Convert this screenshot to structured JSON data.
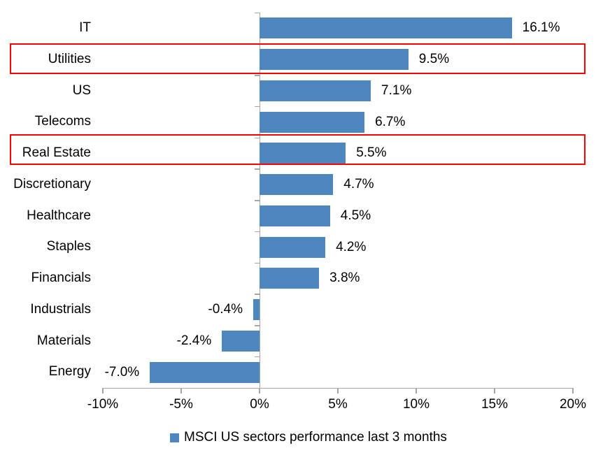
{
  "chart_data": {
    "type": "bar",
    "orientation": "horizontal",
    "title": "",
    "categories": [
      "IT",
      "Utilities",
      "US",
      "Telecoms",
      "Real Estate",
      "Discretionary",
      "Healthcare",
      "Staples",
      "Financials",
      "Industrials",
      "Materials",
      "Energy"
    ],
    "values": [
      16.1,
      9.5,
      7.1,
      6.7,
      5.5,
      4.7,
      4.5,
      4.2,
      3.8,
      -0.4,
      -2.4,
      -7.0
    ],
    "value_labels": [
      "16.1%",
      "9.5%",
      "7.1%",
      "6.7%",
      "5.5%",
      "4.7%",
      "4.5%",
      "4.2%",
      "3.8%",
      "-0.4%",
      "-2.4%",
      "-7.0%"
    ],
    "xlim": [
      -10,
      20
    ],
    "x_tick_values": [
      -10,
      -5,
      0,
      5,
      10,
      15,
      20
    ],
    "x_tick_labels": [
      "-10%",
      "-5%",
      "0%",
      "5%",
      "10%",
      "15%",
      "20%"
    ],
    "grid": false,
    "legend": "MSCI US sectors performance last 3 months",
    "legend_position": "bottom",
    "highlighted_categories": [
      "Utilities",
      "Real Estate"
    ],
    "colors": {
      "bar": "#4E86BE",
      "highlight_border": "#FF0000",
      "axis": "#A6A6A6",
      "text": "#000000",
      "background": "#FFFFFF"
    }
  }
}
